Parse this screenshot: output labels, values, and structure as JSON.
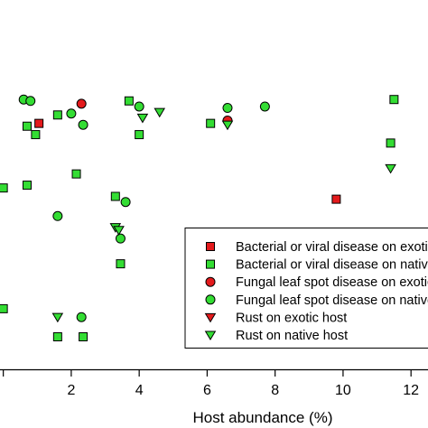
{
  "chart_data": {
    "type": "scatter",
    "title": "",
    "xlabel": "Host abundance (%)",
    "ylabel": "",
    "xlim": [
      -0.15,
      12.5
    ],
    "ylim": [
      0,
      1
    ],
    "xticks": [
      0,
      2,
      4,
      6,
      8,
      10,
      12
    ],
    "xtick_labels": [
      "",
      "2",
      "4",
      "6",
      "8",
      "10",
      "12"
    ],
    "grid": false,
    "legend_position": "bottom-right",
    "series": [
      {
        "name": "Bacterial or viral disease on exotic host",
        "marker": "square",
        "color": "#e41a1c",
        "points": [
          [
            1.05,
            0.76
          ],
          [
            7.0,
            0.3
          ],
          [
            9.8,
            0.49
          ]
        ]
      },
      {
        "name": "Bacterial or viral disease on native host",
        "marker": "square",
        "color": "#33dd33",
        "points": [
          [
            0.7,
            0.75
          ],
          [
            0.95,
            0.72
          ],
          [
            1.6,
            0.79
          ],
          [
            3.7,
            0.84
          ],
          [
            4.0,
            0.72
          ],
          [
            6.1,
            0.76
          ],
          [
            11.5,
            0.845
          ],
          [
            11.4,
            0.69
          ],
          [
            0.7,
            0.54
          ],
          [
            0.0,
            0.53
          ],
          [
            2.15,
            0.58
          ],
          [
            3.3,
            0.5
          ],
          [
            3.45,
            0.26
          ],
          [
            0.0,
            0.1
          ],
          [
            1.6,
            0.0
          ],
          [
            2.35,
            0.0
          ]
        ]
      },
      {
        "name": "Fungal leaf spot disease on exotic host",
        "marker": "circle",
        "color": "#e41a1c",
        "points": [
          [
            2.3,
            0.83
          ],
          [
            6.6,
            0.77
          ]
        ]
      },
      {
        "name": "Fungal leaf spot disease on native host",
        "marker": "circle",
        "color": "#33dd33",
        "points": [
          [
            0.6,
            0.845
          ],
          [
            0.8,
            0.84
          ],
          [
            2.0,
            0.795
          ],
          [
            2.35,
            0.755
          ],
          [
            4.0,
            0.82
          ],
          [
            6.6,
            0.815
          ],
          [
            7.7,
            0.82
          ],
          [
            1.6,
            0.43
          ],
          [
            3.6,
            0.48
          ],
          [
            3.45,
            0.35
          ],
          [
            2.3,
            0.07
          ]
        ]
      },
      {
        "name": "Rust on exotic host",
        "marker": "triangle-down",
        "color": "#e41a1c",
        "points": []
      },
      {
        "name": "Rust on native host",
        "marker": "triangle-down",
        "color": "#33dd33",
        "points": [
          [
            4.6,
            0.8
          ],
          [
            4.1,
            0.78
          ],
          [
            6.6,
            0.755
          ],
          [
            11.4,
            0.6
          ],
          [
            3.3,
            0.39
          ],
          [
            3.4,
            0.38
          ],
          [
            1.6,
            0.07
          ]
        ]
      }
    ]
  }
}
